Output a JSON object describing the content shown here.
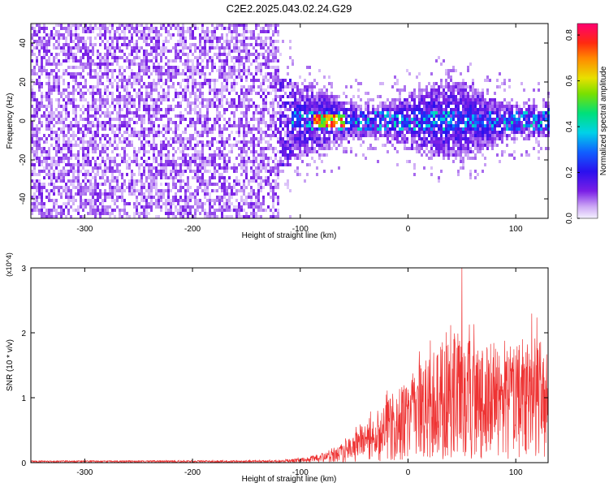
{
  "title": "C2E2.2025.043.02.24.G29",
  "colors": {
    "snr_series": "#ee3333",
    "spectrogram_low": "#5a00d8",
    "spectrogram_high": "#ff0050"
  },
  "chart_data": [
    {
      "type": "heatmap",
      "xlabel": "Height of straight line (km)",
      "ylabel": "Frequency (Hz)",
      "xlim": [
        -350,
        130
      ],
      "ylim": [
        -50,
        50
      ],
      "xticks": [
        -300,
        -200,
        -100,
        0,
        100
      ],
      "yticks": [
        -40,
        -20,
        0,
        20,
        40
      ],
      "grid": false,
      "colorbar": {
        "label": "Normalized spectral amplitude",
        "range": [
          0.0,
          0.85
        ],
        "ticks": [
          0.0,
          0.2,
          0.4,
          0.6,
          0.8
        ],
        "colormap": "rainbow (violet-blue-cyan-green-yellow-red-magenta)"
      },
      "regions": [
        {
          "x_range": [
            -350,
            -120
          ],
          "description": "noise",
          "frequency_spread": [
            -50,
            50
          ],
          "amplitude": [
            0.02,
            0.12
          ]
        },
        {
          "x_range": [
            -120,
            130
          ],
          "description": "signal band",
          "frequency_spread": [
            -20,
            20
          ],
          "amplitude": [
            0.1,
            0.35
          ]
        },
        {
          "x_range": [
            -90,
            -60
          ],
          "description": "peak",
          "frequency_center": 1,
          "amplitude": [
            0.6,
            0.85
          ]
        }
      ]
    },
    {
      "type": "line",
      "xlabel": "Height of straight line (km)",
      "ylabel": "SNR (10 * v/v)",
      "y_multiplier": "(x10^4)",
      "xlim": [
        -350,
        130
      ],
      "ylim": [
        0,
        3
      ],
      "xticks": [
        -300,
        -200,
        -100,
        0,
        100
      ],
      "yticks": [
        0,
        1,
        2,
        3
      ],
      "grid": false,
      "series": [
        {
          "envelope": {
            "x": [
              -350,
              -200,
              -120,
              -100,
              -80,
              -60,
              -40,
              -20,
              0,
              20,
              40,
              50,
              60,
              80,
              100,
              120,
              130
            ],
            "y_max": [
              0.03,
              0.04,
              0.05,
              0.08,
              0.15,
              0.35,
              0.7,
              1.1,
              1.5,
              2.1,
              2.35,
              3.0,
              2.3,
              2.2,
              2.3,
              2.4,
              2.0
            ],
            "y_typical": [
              0.02,
              0.02,
              0.02,
              0.04,
              0.08,
              0.18,
              0.35,
              0.55,
              0.75,
              0.95,
              1.1,
              1.2,
              1.05,
              1.0,
              1.05,
              1.1,
              1.0
            ]
          }
        }
      ]
    }
  ]
}
